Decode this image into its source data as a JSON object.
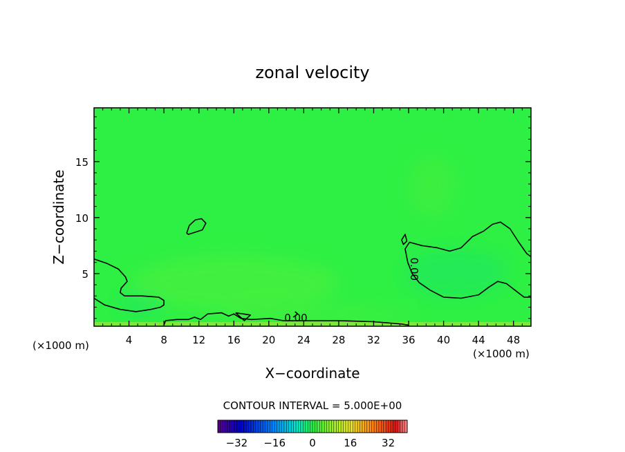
{
  "chart_data": {
    "type": "heatmap",
    "title": "zonal velocity",
    "xlabel": "X−coordinate",
    "ylabel": "Z−coordinate",
    "x_unit_left": "(×1000 m)",
    "x_unit_right": "(×1000 m)",
    "xlim": [
      0,
      50
    ],
    "ylim": [
      0.3,
      19.8
    ],
    "x_ticks": [
      4,
      8,
      12,
      16,
      20,
      24,
      28,
      32,
      36,
      40,
      44,
      48
    ],
    "x_tick_labels": [
      "4",
      "8",
      "12",
      "16",
      "20",
      "24",
      "28",
      "32",
      "36",
      "40",
      "44",
      "48"
    ],
    "y_ticks": [
      5,
      10,
      15
    ],
    "y_tick_labels": [
      "5",
      "10",
      "15"
    ],
    "field_range": [
      -2,
      2
    ],
    "contour_interval_text": "CONTOUR INTERVAL = 5.000E+00",
    "contour_labels": [
      {
        "text": "0.00",
        "x": 23.1,
        "z": 1.0,
        "angle": 0
      },
      {
        "text": "0.00",
        "x": 36.6,
        "z": 5.4,
        "angle": 90
      }
    ],
    "contours": [
      {
        "name": "left-upper",
        "points": [
          [
            0,
            6.3
          ],
          [
            1.5,
            5.9
          ],
          [
            2.8,
            5.4
          ],
          [
            3.6,
            4.7
          ],
          [
            3.8,
            4.3
          ],
          [
            3.1,
            3.7
          ],
          [
            3.0,
            3.3
          ],
          [
            3.5,
            3.0
          ],
          [
            5.5,
            3.0
          ],
          [
            7.4,
            2.9
          ],
          [
            8.0,
            2.6
          ],
          [
            8.0,
            2.2
          ],
          [
            7.6,
            2.0
          ],
          [
            6.5,
            1.8
          ],
          [
            4.8,
            1.6
          ],
          [
            3.0,
            1.8
          ],
          [
            1.2,
            2.2
          ],
          [
            0,
            2.8
          ]
        ]
      },
      {
        "name": "island-12",
        "points": [
          [
            10.6,
            8.6
          ],
          [
            10.9,
            9.3
          ],
          [
            11.6,
            9.8
          ],
          [
            12.3,
            9.9
          ],
          [
            12.8,
            9.5
          ],
          [
            12.4,
            8.9
          ],
          [
            11.6,
            8.7
          ],
          [
            10.8,
            8.5
          ],
          [
            10.6,
            8.6
          ]
        ]
      },
      {
        "name": "zero-line",
        "points": [
          [
            8,
            0.4
          ],
          [
            8.2,
            0.8
          ],
          [
            9.5,
            0.9
          ],
          [
            10.8,
            0.9
          ],
          [
            11.5,
            1.1
          ],
          [
            12.2,
            0.9
          ],
          [
            13.0,
            1.4
          ],
          [
            14.6,
            1.5
          ],
          [
            15.4,
            1.2
          ],
          [
            16.0,
            1.4
          ],
          [
            16.8,
            1.0
          ],
          [
            18.0,
            0.9
          ],
          [
            20.2,
            1.0
          ],
          [
            21.6,
            0.8
          ],
          [
            24.0,
            0.8
          ],
          [
            28.0,
            0.8
          ],
          [
            32.0,
            0.7
          ],
          [
            35.2,
            0.5
          ],
          [
            36.0,
            0.4
          ]
        ]
      },
      {
        "name": "triangle-17",
        "points": [
          [
            16.2,
            1.5
          ],
          [
            17.9,
            1.3
          ],
          [
            17.2,
            0.8
          ],
          [
            16.2,
            1.5
          ]
        ]
      },
      {
        "name": "hook-23",
        "points": [
          [
            22.8,
            1.1
          ],
          [
            23.3,
            1.4
          ],
          [
            23.0,
            1.6
          ]
        ]
      },
      {
        "name": "right-outer",
        "points": [
          [
            50,
            6.5
          ],
          [
            49.5,
            6.8
          ],
          [
            48.6,
            7.8
          ],
          [
            47.6,
            9.0
          ],
          [
            46.5,
            9.6
          ],
          [
            45.6,
            9.4
          ],
          [
            44.6,
            8.8
          ],
          [
            43.3,
            8.3
          ],
          [
            42.0,
            7.3
          ],
          [
            40.7,
            7.0
          ],
          [
            39.3,
            7.3
          ],
          [
            37.5,
            7.5
          ],
          [
            36.1,
            7.8
          ],
          [
            35.6,
            7.2
          ],
          [
            35.9,
            6.0
          ],
          [
            36.4,
            5.0
          ],
          [
            37.2,
            4.2
          ],
          [
            38.5,
            3.5
          ],
          [
            40.0,
            2.9
          ],
          [
            42.0,
            2.8
          ],
          [
            44.0,
            3.1
          ],
          [
            45.2,
            3.8
          ],
          [
            46.2,
            4.3
          ],
          [
            47.2,
            4.1
          ],
          [
            48.2,
            3.5
          ],
          [
            49.2,
            2.9
          ],
          [
            50,
            2.9
          ]
        ]
      },
      {
        "name": "notch-35",
        "points": [
          [
            35.2,
            8.0
          ],
          [
            35.6,
            8.5
          ],
          [
            35.8,
            7.9
          ],
          [
            35.4,
            7.6
          ],
          [
            35.2,
            8.0
          ]
        ]
      }
    ],
    "colorbar": {
      "ticks": [
        -32,
        -16,
        0,
        16,
        32
      ],
      "tick_labels": [
        "−32",
        "−16",
        "0",
        "16",
        "32"
      ],
      "range": [
        -40,
        40
      ],
      "n_cells": 80
    }
  }
}
